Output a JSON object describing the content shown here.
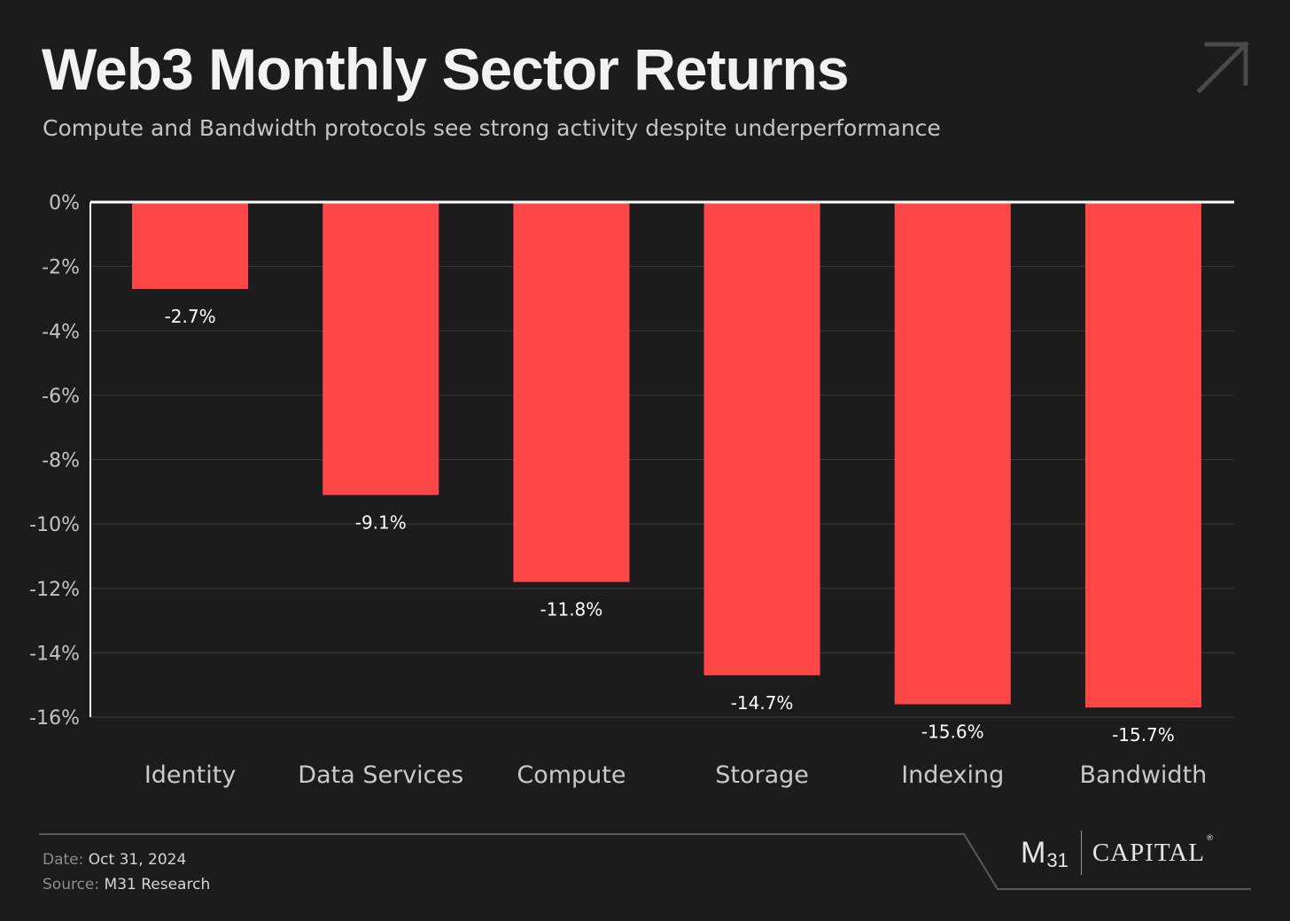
{
  "title": "Web3 Monthly Sector Returns",
  "subtitle": "Compute and Bandwidth protocols see strong activity despite underperformance",
  "icons": {
    "corner": "arrow-up-right-icon"
  },
  "colors": {
    "background": "#1c1c1c",
    "bar": "#ff4747",
    "grid": "#3a3a3a",
    "zero_line": "#ffffff",
    "tick_label": "#c4c4c4",
    "category_label": "#c9c9c9",
    "data_label": "#ffffff"
  },
  "chart_data": {
    "type": "bar",
    "categories": [
      "Identity",
      "Data Services",
      "Compute",
      "Storage",
      "Indexing",
      "Bandwidth"
    ],
    "values": [
      -2.7,
      -9.1,
      -11.8,
      -14.7,
      -15.6,
      -15.7
    ],
    "data_labels": [
      "-2.7%",
      "-9.1%",
      "-11.8%",
      "-14.7%",
      "-15.6%",
      "-15.7%"
    ],
    "yticks": [
      "0%",
      "-2%",
      "-4%",
      "-6%",
      "-8%",
      "-10%",
      "-12%",
      "-14%",
      "-16%"
    ],
    "ytick_values": [
      0,
      -2,
      -4,
      -6,
      -8,
      -10,
      -12,
      -14,
      -16
    ],
    "ylim": [
      -16,
      0
    ],
    "grid": true,
    "legend": "none"
  },
  "footer": {
    "date_label": "Date:",
    "date_value": "Oct 31, 2024",
    "source_label": "Source:",
    "source_value": "M31 Research",
    "logo": {
      "m": "M",
      "sub": "31",
      "name": "CAPITAL",
      "reg": "®"
    }
  }
}
